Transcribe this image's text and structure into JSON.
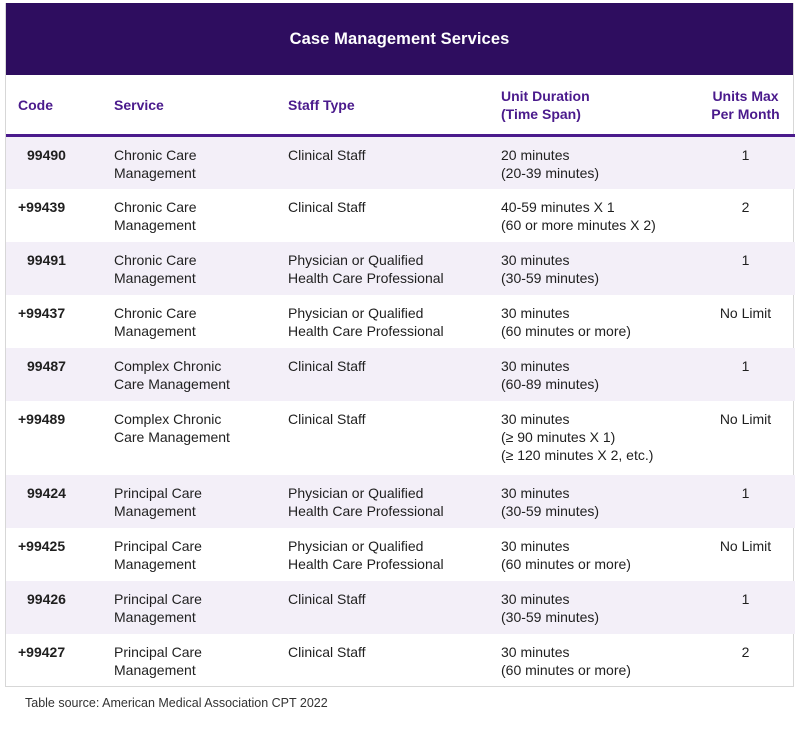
{
  "title": "Case Management Services",
  "colors": {
    "header_bg": "#2e0d5f",
    "header_text": "#4a1a8c",
    "row_shade": "#f3eff8"
  },
  "columns": {
    "code": "Code",
    "service": "Service",
    "staff": "Staff Type",
    "duration_line1": "Unit Duration",
    "duration_line2": "(Time Span)",
    "units_line1": "Units Max",
    "units_line2": "Per Month"
  },
  "rows": [
    {
      "code": "99490",
      "service1": "Chronic Care",
      "service2": "Management",
      "staff1": "Clinical Staff",
      "staff2": "",
      "dur1": "20 minutes",
      "dur2": "(20-39 minutes)",
      "dur3": "",
      "units": "1"
    },
    {
      "code": "+99439",
      "service1": "Chronic Care",
      "service2": "Management",
      "staff1": "Clinical Staff",
      "staff2": "",
      "dur1": "40-59 minutes X 1",
      "dur2": "(60 or more minutes X 2)",
      "dur3": "",
      "units": "2"
    },
    {
      "code": "99491",
      "service1": "Chronic Care",
      "service2": "Management",
      "staff1": "Physician or Qualified",
      "staff2": "Health Care Professional",
      "dur1": "30 minutes",
      "dur2": "(30-59 minutes)",
      "dur3": "",
      "units": "1"
    },
    {
      "code": "+99437",
      "service1": "Chronic Care",
      "service2": "Management",
      "staff1": "Physician or Qualified",
      "staff2": "Health Care Professional",
      "dur1": "30 minutes",
      "dur2": "(60 minutes or more)",
      "dur3": "",
      "units": "No Limit"
    },
    {
      "code": "99487",
      "service1": "Complex Chronic",
      "service2": "Care Management",
      "staff1": "Clinical Staff",
      "staff2": "",
      "dur1": "30 minutes",
      "dur2": "(60-89 minutes)",
      "dur3": "",
      "units": "1"
    },
    {
      "code": "+99489",
      "service1": "Complex Chronic",
      "service2": "Care Management",
      "staff1": "Clinical Staff",
      "staff2": "",
      "dur1": "30 minutes",
      "dur2": "(≥ 90 minutes X 1)",
      "dur3": "(≥ 120 minutes X 2, etc.)",
      "units": "No Limit"
    },
    {
      "code": "99424",
      "service1": "Principal Care",
      "service2": "Management",
      "staff1": "Physician or Qualified",
      "staff2": "Health Care Professional",
      "dur1": "30 minutes",
      "dur2": "(30-59 minutes)",
      "dur3": "",
      "units": "1"
    },
    {
      "code": "+99425",
      "service1": "Principal Care",
      "service2": "Management",
      "staff1": "Physician or Qualified",
      "staff2": "Health Care Professional",
      "dur1": "30 minutes",
      "dur2": "(60 minutes or more)",
      "dur3": "",
      "units": "No Limit"
    },
    {
      "code": "99426",
      "service1": "Principal Care",
      "service2": "Management",
      "staff1": "Clinical Staff",
      "staff2": "",
      "dur1": "30 minutes",
      "dur2": "(30-59 minutes)",
      "dur3": "",
      "units": "1"
    },
    {
      "code": "+99427",
      "service1": "Principal Care",
      "service2": "Management",
      "staff1": "Clinical Staff",
      "staff2": "",
      "dur1": "30 minutes",
      "dur2": "(60 minutes or more)",
      "dur3": "",
      "units": "2"
    }
  ],
  "source": "Table source: American Medical Association CPT 2022"
}
